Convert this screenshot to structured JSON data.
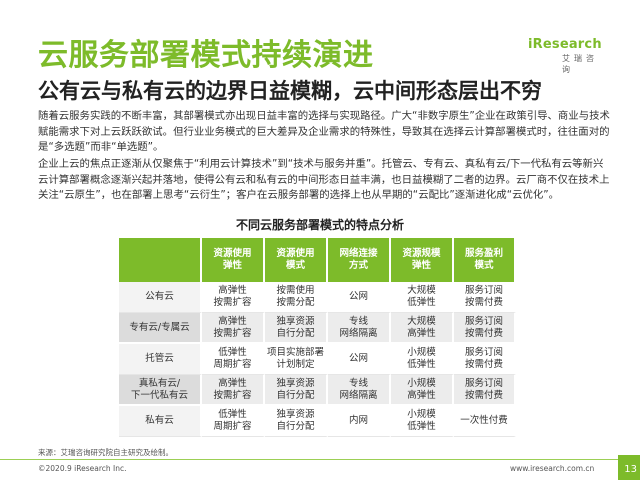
{
  "header": {
    "title": "云服务部署模式持续演进",
    "logo_name": "iResearch",
    "logo_sub": "艾瑞咨询",
    "subtitle": "公有云与私有云的边界日益模糊，云中间形态层出不穷"
  },
  "body": {
    "paragraph1": "随着云服务实践的不断丰富，其部署模式亦出现日益丰富的选择与实现路径。广大“非数字原生”企业在政策引导、商业与技术赋能需求下对上云跃跃欲试。但行业业务模式的巨大差异及企业需求的特殊性，导致其在选择云计算部署模式时，往往面对的是“多选题”而非“单选题”。",
    "paragraph2": "企业上云的焦点正逐渐从仅聚焦于“利用云计算技术”到“技术与服务并重”。托管云、专有云、真私有云/下一代私有云等新兴云计算部署概念逐渐兴起并落地，使得公有云和私有云的中间形态日益丰满，也日益模糊了二者的边界。云厂商不仅在技术上关注“云原生”，也在部署上思考“云衍生”；客户在云服务部署的选择上也从早期的“云配比”逐渐进化成“云优化”。"
  },
  "table": {
    "title": "不同云服务部署模式的特点分析",
    "headers": [
      [
        "资源使用",
        "弹性"
      ],
      [
        "资源使用",
        "模式"
      ],
      [
        "网络连接",
        "方式"
      ],
      [
        "资源规模",
        "弹性"
      ],
      [
        "服务盈利",
        "模式"
      ]
    ],
    "rows": [
      {
        "name": [
          "公有云"
        ],
        "cells": [
          [
            "高弹性",
            "按需扩容"
          ],
          [
            "按需使用",
            "按需分配"
          ],
          [
            "公网"
          ],
          [
            "大规模",
            "低弹性"
          ],
          [
            "服务订阅",
            "按需付费"
          ]
        ]
      },
      {
        "name": [
          "专有云/专属云"
        ],
        "cells": [
          [
            "高弹性",
            "按需扩容"
          ],
          [
            "独享资源",
            "自行分配"
          ],
          [
            "专线",
            "网络隔离"
          ],
          [
            "大规模",
            "高弹性"
          ],
          [
            "服务订阅",
            "按需付费"
          ]
        ]
      },
      {
        "name": [
          "托管云"
        ],
        "cells": [
          [
            "低弹性",
            "周期扩容"
          ],
          [
            "项目实施部署",
            "计划制定"
          ],
          [
            "公网"
          ],
          [
            "小规模",
            "低弹性"
          ],
          [
            "服务订阅",
            "按需付费"
          ]
        ]
      },
      {
        "name": [
          "真私有云/",
          "下一代私有云"
        ],
        "cells": [
          [
            "高弹性",
            "按需扩容"
          ],
          [
            "独享资源",
            "自行分配"
          ],
          [
            "专线",
            "网络隔离"
          ],
          [
            "小规模",
            "高弹性"
          ],
          [
            "服务订阅",
            "按需付费"
          ]
        ]
      },
      {
        "name": [
          "私有云"
        ],
        "cells": [
          [
            "低弹性",
            "周期扩容"
          ],
          [
            "独享资源",
            "自行分配"
          ],
          [
            "内网"
          ],
          [
            "小规模",
            "低弹性"
          ],
          [
            "一次性付费"
          ]
        ]
      }
    ]
  },
  "footer": {
    "source": "来源：艾瑞咨询研究院自主研究及绘制。",
    "copyright": "©2020.9 iResearch Inc.",
    "website": "www.iresearch.com.cn",
    "page_number": "13"
  },
  "colors": {
    "accent": "#7dbb2a",
    "header_text": "#ffffff",
    "stripe": "#ececec"
  }
}
